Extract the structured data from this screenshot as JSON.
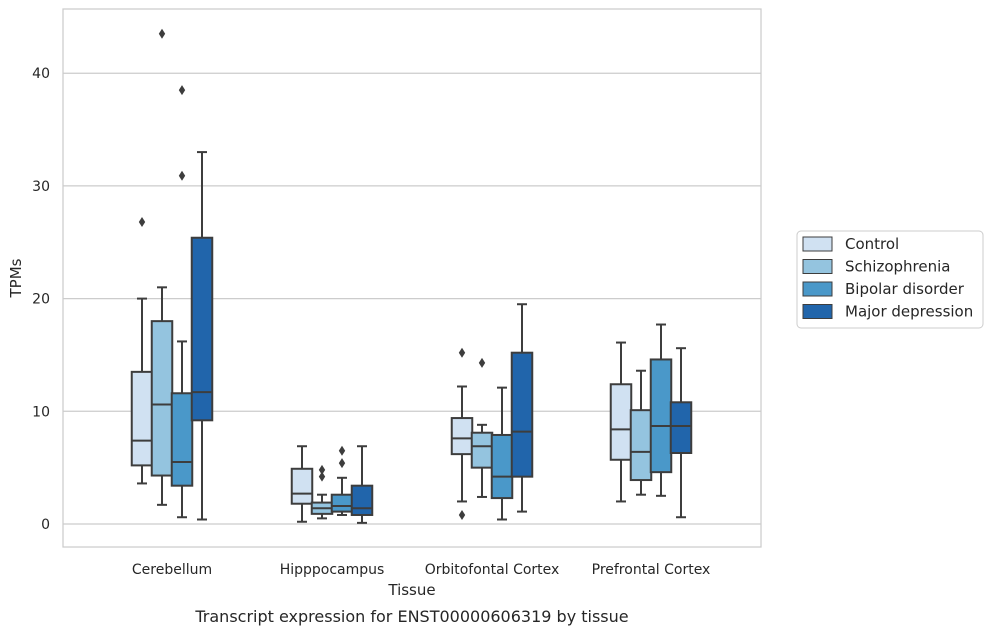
{
  "caption": "Transcript expression for ENST00000606319 by tissue",
  "chart_data": {
    "type": "box",
    "xlabel": "Tissue",
    "ylabel": "TPMs",
    "ylim": [
      -2,
      45.5
    ],
    "yticks": [
      0,
      10,
      20,
      30,
      40
    ],
    "ytick_labels": [
      "0",
      "10",
      "20",
      "30",
      "40"
    ],
    "grid": "horizontal",
    "legend_position": "right",
    "categories": [
      "Cerebellum",
      "Hipppocampus",
      "Orbitofontal Cortex",
      "Prefrontal Cortex"
    ],
    "series": [
      {
        "name": "Control",
        "color": "#d0e1f2",
        "boxes": [
          {
            "whislo": 3.6,
            "q1": 5.2,
            "med": 7.4,
            "q3": 13.5,
            "whishi": 20.0,
            "fliers": [
              26.8
            ]
          },
          {
            "whislo": 0.2,
            "q1": 1.8,
            "med": 2.7,
            "q3": 4.9,
            "whishi": 6.9,
            "fliers": []
          },
          {
            "whislo": 2.0,
            "q1": 6.2,
            "med": 7.6,
            "q3": 9.4,
            "whishi": 12.2,
            "fliers": [
              15.2,
              0.8
            ]
          },
          {
            "whislo": 2.0,
            "q1": 5.7,
            "med": 8.4,
            "q3": 12.4,
            "whishi": 16.1,
            "fliers": []
          }
        ]
      },
      {
        "name": "Schizophrenia",
        "color": "#94c4df",
        "boxes": [
          {
            "whislo": 1.7,
            "q1": 4.3,
            "med": 10.6,
            "q3": 18.0,
            "whishi": 21.0,
            "fliers": [
              43.5
            ]
          },
          {
            "whislo": 0.5,
            "q1": 0.9,
            "med": 1.4,
            "q3": 1.9,
            "whishi": 2.6,
            "fliers": [
              4.2,
              4.8
            ]
          },
          {
            "whislo": 2.4,
            "q1": 5.0,
            "med": 6.9,
            "q3": 8.1,
            "whishi": 8.8,
            "fliers": [
              14.3
            ]
          },
          {
            "whislo": 2.6,
            "q1": 3.9,
            "med": 6.4,
            "q3": 10.1,
            "whishi": 13.6,
            "fliers": []
          }
        ]
      },
      {
        "name": "Bipolar disorder",
        "color": "#4a98c9",
        "boxes": [
          {
            "whislo": 0.6,
            "q1": 3.4,
            "med": 5.5,
            "q3": 11.6,
            "whishi": 16.2,
            "fliers": [
              38.5,
              30.9
            ]
          },
          {
            "whislo": 0.8,
            "q1": 1.1,
            "med": 1.6,
            "q3": 2.6,
            "whishi": 4.1,
            "fliers": [
              5.4,
              6.5
            ]
          },
          {
            "whislo": 0.4,
            "q1": 2.3,
            "med": 4.2,
            "q3": 7.9,
            "whishi": 12.1,
            "fliers": []
          },
          {
            "whislo": 2.5,
            "q1": 4.6,
            "med": 8.7,
            "q3": 14.6,
            "whishi": 17.7,
            "fliers": []
          }
        ]
      },
      {
        "name": "Major depression",
        "color": "#2165ab",
        "boxes": [
          {
            "whislo": 0.4,
            "q1": 9.2,
            "med": 11.7,
            "q3": 25.4,
            "whishi": 33.0,
            "fliers": []
          },
          {
            "whislo": 0.1,
            "q1": 0.8,
            "med": 1.4,
            "q3": 3.4,
            "whishi": 6.9,
            "fliers": []
          },
          {
            "whislo": 1.1,
            "q1": 4.2,
            "med": 8.2,
            "q3": 15.2,
            "whishi": 19.5,
            "fliers": []
          },
          {
            "whislo": 0.6,
            "q1": 6.3,
            "med": 8.7,
            "q3": 10.8,
            "whishi": 15.6,
            "fliers": []
          }
        ]
      }
    ]
  }
}
